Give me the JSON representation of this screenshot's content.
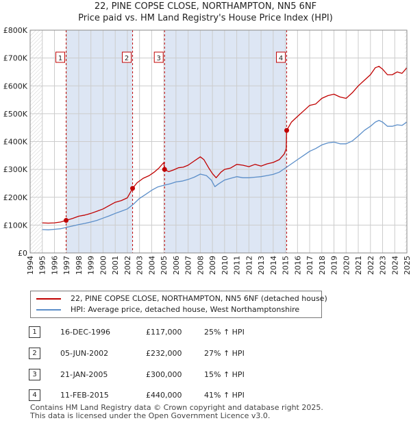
{
  "title_line1": "22, PINE COPSE CLOSE, NORTHAMPTON, NN5 6NF",
  "title_line2": "Price paid vs. HM Land Registry's House Price Index (HPI)",
  "colors": {
    "property": "#c00000",
    "hpi": "#5b8ec9",
    "band": "#dde6f4",
    "grid": "#cccccc"
  },
  "chart_data": {
    "type": "line",
    "title": "Price paid vs. HM Land Registry's House Price Index (HPI)",
    "xlim": [
      1994,
      2025
    ],
    "ylim": [
      0,
      800000
    ],
    "y_ticks": [
      0,
      100000,
      200000,
      300000,
      400000,
      500000,
      600000,
      700000,
      800000
    ],
    "y_tick_labels": [
      "£0",
      "£100K",
      "£200K",
      "£300K",
      "£400K",
      "£500K",
      "£600K",
      "£700K",
      "£800K"
    ],
    "x_ticks": [
      1994,
      1995,
      1996,
      1997,
      1998,
      1999,
      2000,
      2001,
      2002,
      2003,
      2004,
      2005,
      2006,
      2007,
      2008,
      2009,
      2010,
      2011,
      2012,
      2013,
      2014,
      2015,
      2016,
      2017,
      2018,
      2019,
      2020,
      2021,
      2022,
      2023,
      2024,
      2025
    ],
    "data_start": 1995.0,
    "shaded_ranges": [
      [
        1996.96,
        2002.43
      ],
      [
        2005.06,
        2015.11
      ]
    ],
    "series": [
      {
        "name": "22, PINE COPSE CLOSE, NORTHAMPTON, NN5 6NF (detached house)",
        "color_key": "property",
        "x": [
          1995.0,
          1995.5,
          1996.0,
          1996.5,
          1996.96,
          1997.5,
          1998.0,
          1998.5,
          1999.0,
          1999.5,
          2000.0,
          2000.5,
          2001.0,
          2001.5,
          2002.0,
          2002.43,
          2002.8,
          2003.3,
          2003.8,
          2004.2,
          2004.6,
          2005.0,
          2005.06,
          2005.4,
          2005.8,
          2006.2,
          2006.6,
          2007.0,
          2007.5,
          2008.0,
          2008.3,
          2008.7,
          2009.0,
          2009.3,
          2009.7,
          2010.0,
          2010.5,
          2011.0,
          2011.5,
          2012.0,
          2012.5,
          2013.0,
          2013.5,
          2014.0,
          2014.5,
          2014.9,
          2015.08,
          2015.11,
          2015.5,
          2016.0,
          2016.5,
          2017.0,
          2017.5,
          2018.0,
          2018.5,
          2019.0,
          2019.5,
          2020.0,
          2020.5,
          2021.0,
          2021.5,
          2022.0,
          2022.4,
          2022.7,
          2023.0,
          2023.4,
          2023.8,
          2024.2,
          2024.6,
          2025.0
        ],
        "values": [
          108000,
          107000,
          108000,
          111000,
          117000,
          124000,
          132000,
          136000,
          142000,
          150000,
          158000,
          170000,
          182000,
          188000,
          198000,
          232000,
          252000,
          268000,
          278000,
          290000,
          305000,
          325000,
          300000,
          292000,
          298000,
          306000,
          308000,
          315000,
          330000,
          345000,
          335000,
          305000,
          285000,
          270000,
          290000,
          300000,
          305000,
          318000,
          315000,
          310000,
          318000,
          312000,
          320000,
          325000,
          335000,
          355000,
          375000,
          440000,
          470000,
          490000,
          510000,
          530000,
          535000,
          555000,
          565000,
          570000,
          560000,
          555000,
          575000,
          600000,
          620000,
          640000,
          665000,
          670000,
          660000,
          640000,
          640000,
          650000,
          645000,
          665000
        ]
      },
      {
        "name": "HPI: Average price, detached house, West Northamptonshire",
        "color_key": "hpi",
        "x": [
          1995.0,
          1995.5,
          1996.0,
          1996.5,
          1997.0,
          1997.5,
          1998.0,
          1998.5,
          1999.0,
          1999.5,
          2000.0,
          2000.5,
          2001.0,
          2001.5,
          2002.0,
          2002.5,
          2003.0,
          2003.5,
          2004.0,
          2004.5,
          2005.0,
          2005.5,
          2006.0,
          2006.5,
          2007.0,
          2007.5,
          2008.0,
          2008.5,
          2008.9,
          2009.2,
          2009.5,
          2010.0,
          2010.5,
          2011.0,
          2011.5,
          2012.0,
          2012.5,
          2013.0,
          2013.5,
          2014.0,
          2014.5,
          2015.0,
          2015.5,
          2016.0,
          2016.5,
          2017.0,
          2017.5,
          2018.0,
          2018.5,
          2019.0,
          2019.5,
          2020.0,
          2020.5,
          2021.0,
          2021.5,
          2022.0,
          2022.4,
          2022.7,
          2023.0,
          2023.4,
          2023.8,
          2024.2,
          2024.6,
          2025.0
        ],
        "values": [
          84000,
          83000,
          85000,
          87000,
          92000,
          97000,
          102000,
          106000,
          111000,
          117000,
          125000,
          133000,
          142000,
          150000,
          158000,
          175000,
          196000,
          210000,
          225000,
          237000,
          243000,
          248000,
          255000,
          258000,
          264000,
          272000,
          283000,
          278000,
          262000,
          238000,
          248000,
          262000,
          268000,
          274000,
          270000,
          270000,
          272000,
          274000,
          278000,
          282000,
          290000,
          305000,
          320000,
          335000,
          350000,
          365000,
          375000,
          388000,
          395000,
          398000,
          392000,
          392000,
          402000,
          420000,
          440000,
          455000,
          470000,
          476000,
          470000,
          455000,
          455000,
          460000,
          458000,
          470000
        ]
      }
    ],
    "markers": [
      {
        "label": "1",
        "x": 1996.96,
        "y": 117000
      },
      {
        "label": "2",
        "x": 2002.43,
        "y": 232000
      },
      {
        "label": "3",
        "x": 2005.06,
        "y": 300000
      },
      {
        "label": "4",
        "x": 2015.11,
        "y": 440000
      }
    ]
  },
  "legend": {
    "property_label": "22, PINE COPSE CLOSE, NORTHAMPTON, NN5 6NF (detached house)",
    "hpi_label": "HPI: Average price, detached house, West Northamptonshire"
  },
  "sales": [
    {
      "num": "1",
      "date": "16-DEC-1996",
      "price": "£117,000",
      "hpi": "25% ↑ HPI"
    },
    {
      "num": "2",
      "date": "05-JUN-2002",
      "price": "£232,000",
      "hpi": "27% ↑ HPI"
    },
    {
      "num": "3",
      "date": "21-JAN-2005",
      "price": "£300,000",
      "hpi": "15% ↑ HPI"
    },
    {
      "num": "4",
      "date": "11-FEB-2015",
      "price": "£440,000",
      "hpi": "41% ↑ HPI"
    }
  ],
  "footer_line1": "Contains HM Land Registry data © Crown copyright and database right 2025.",
  "footer_line2": "This data is licensed under the Open Government Licence v3.0."
}
